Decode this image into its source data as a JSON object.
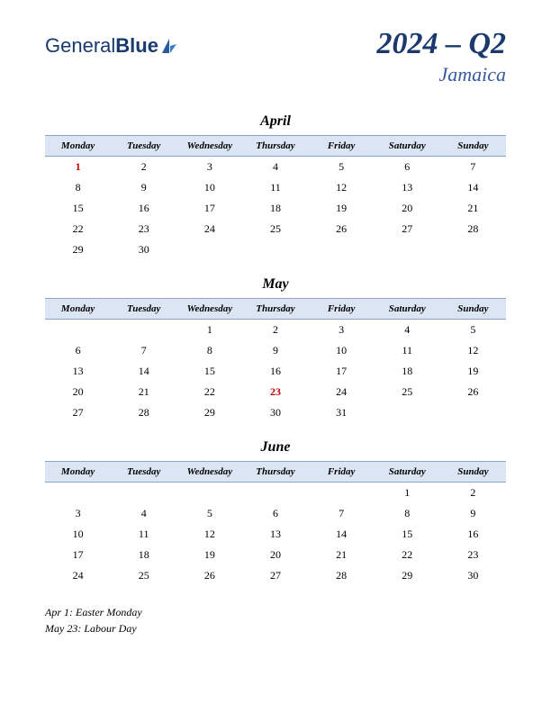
{
  "logo": {
    "text1": "General",
    "text2": "Blue"
  },
  "title": {
    "period": "2024 – Q2",
    "country": "Jamaica"
  },
  "styling": {
    "page_bg": "#ffffff",
    "header_bg": "#dbe5f4",
    "header_border": "#8aa4c8",
    "title_color": "#1a3a6e",
    "country_color": "#3a5a9e",
    "holiday_color": "#c00000",
    "text_color": "#000000",
    "day_header_fontsize": 11,
    "date_fontsize": 12,
    "month_fontsize": 16,
    "period_fontsize": 34,
    "country_fontsize": 22
  },
  "day_headers": [
    "Monday",
    "Tuesday",
    "Wednesday",
    "Thursday",
    "Friday",
    "Saturday",
    "Sunday"
  ],
  "months": [
    {
      "name": "April",
      "weeks": [
        [
          {
            "d": "1",
            "h": true
          },
          {
            "d": "2"
          },
          {
            "d": "3"
          },
          {
            "d": "4"
          },
          {
            "d": "5"
          },
          {
            "d": "6"
          },
          {
            "d": "7"
          }
        ],
        [
          {
            "d": "8"
          },
          {
            "d": "9"
          },
          {
            "d": "10"
          },
          {
            "d": "11"
          },
          {
            "d": "12"
          },
          {
            "d": "13"
          },
          {
            "d": "14"
          }
        ],
        [
          {
            "d": "15"
          },
          {
            "d": "16"
          },
          {
            "d": "17"
          },
          {
            "d": "18"
          },
          {
            "d": "19"
          },
          {
            "d": "20"
          },
          {
            "d": "21"
          }
        ],
        [
          {
            "d": "22"
          },
          {
            "d": "23"
          },
          {
            "d": "24"
          },
          {
            "d": "25"
          },
          {
            "d": "26"
          },
          {
            "d": "27"
          },
          {
            "d": "28"
          }
        ],
        [
          {
            "d": "29"
          },
          {
            "d": "30"
          },
          {
            "d": ""
          },
          {
            "d": ""
          },
          {
            "d": ""
          },
          {
            "d": ""
          },
          {
            "d": ""
          }
        ]
      ]
    },
    {
      "name": "May",
      "weeks": [
        [
          {
            "d": ""
          },
          {
            "d": ""
          },
          {
            "d": "1"
          },
          {
            "d": "2"
          },
          {
            "d": "3"
          },
          {
            "d": "4"
          },
          {
            "d": "5"
          }
        ],
        [
          {
            "d": "6"
          },
          {
            "d": "7"
          },
          {
            "d": "8"
          },
          {
            "d": "9"
          },
          {
            "d": "10"
          },
          {
            "d": "11"
          },
          {
            "d": "12"
          }
        ],
        [
          {
            "d": "13"
          },
          {
            "d": "14"
          },
          {
            "d": "15"
          },
          {
            "d": "16"
          },
          {
            "d": "17"
          },
          {
            "d": "18"
          },
          {
            "d": "19"
          }
        ],
        [
          {
            "d": "20"
          },
          {
            "d": "21"
          },
          {
            "d": "22"
          },
          {
            "d": "23",
            "h": true
          },
          {
            "d": "24"
          },
          {
            "d": "25"
          },
          {
            "d": "26"
          }
        ],
        [
          {
            "d": "27"
          },
          {
            "d": "28"
          },
          {
            "d": "29"
          },
          {
            "d": "30"
          },
          {
            "d": "31"
          },
          {
            "d": ""
          },
          {
            "d": ""
          }
        ]
      ]
    },
    {
      "name": "June",
      "weeks": [
        [
          {
            "d": ""
          },
          {
            "d": ""
          },
          {
            "d": ""
          },
          {
            "d": ""
          },
          {
            "d": ""
          },
          {
            "d": "1"
          },
          {
            "d": "2"
          }
        ],
        [
          {
            "d": "3"
          },
          {
            "d": "4"
          },
          {
            "d": "5"
          },
          {
            "d": "6"
          },
          {
            "d": "7"
          },
          {
            "d": "8"
          },
          {
            "d": "9"
          }
        ],
        [
          {
            "d": "10"
          },
          {
            "d": "11"
          },
          {
            "d": "12"
          },
          {
            "d": "13"
          },
          {
            "d": "14"
          },
          {
            "d": "15"
          },
          {
            "d": "16"
          }
        ],
        [
          {
            "d": "17"
          },
          {
            "d": "18"
          },
          {
            "d": "19"
          },
          {
            "d": "20"
          },
          {
            "d": "21"
          },
          {
            "d": "22"
          },
          {
            "d": "23"
          }
        ],
        [
          {
            "d": "24"
          },
          {
            "d": "25"
          },
          {
            "d": "26"
          },
          {
            "d": "27"
          },
          {
            "d": "28"
          },
          {
            "d": "29"
          },
          {
            "d": "30"
          }
        ]
      ]
    }
  ],
  "holidays_list": [
    "Apr 1: Easter Monday",
    "May 23: Labour Day"
  ]
}
